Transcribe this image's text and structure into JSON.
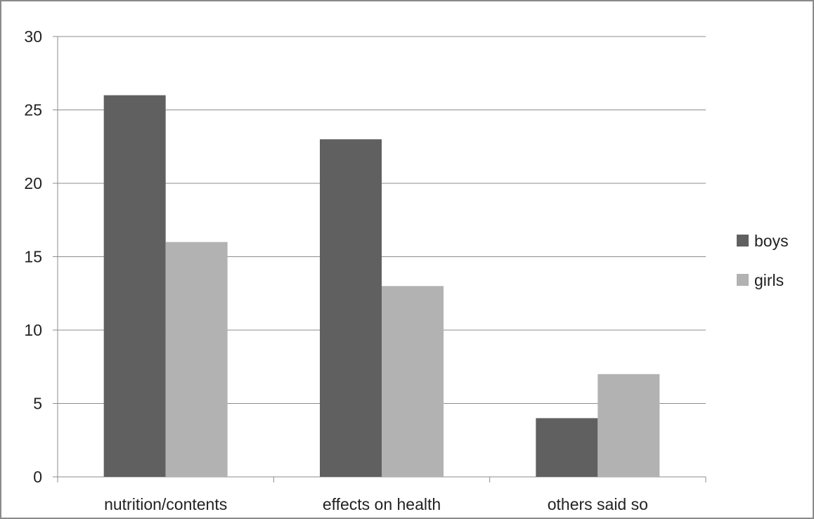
{
  "chart_data": {
    "type": "bar",
    "categories": [
      "nutrition/contents",
      "effects on health",
      "others said so"
    ],
    "series": [
      {
        "name": "boys",
        "values": [
          26,
          23,
          4
        ],
        "color": "#606060"
      },
      {
        "name": "girls",
        "values": [
          16,
          13,
          7
        ],
        "color": "#b2b2b2"
      }
    ],
    "title": "",
    "xlabel": "",
    "ylabel": "",
    "ylim": [
      0,
      30
    ],
    "yticks": [
      0,
      5,
      10,
      15,
      20,
      25,
      30
    ],
    "grid": true,
    "legend": "right"
  }
}
